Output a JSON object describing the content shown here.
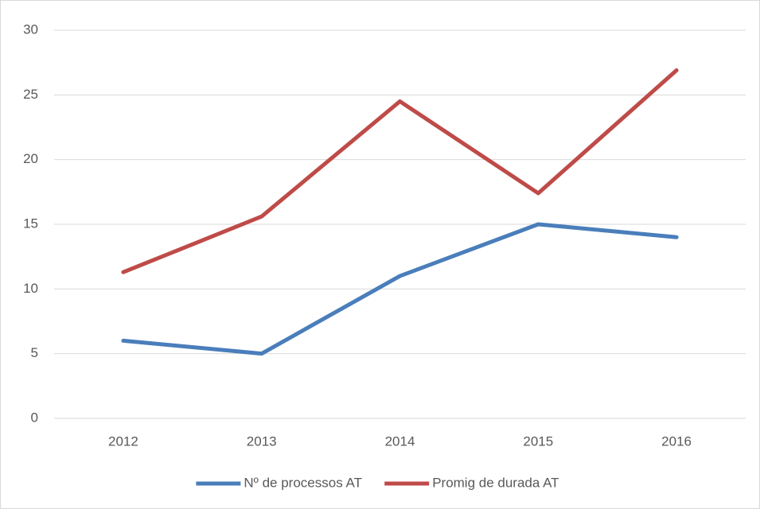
{
  "chart_data": {
    "type": "line",
    "categories": [
      "2012",
      "2013",
      "2014",
      "2015",
      "2016"
    ],
    "series": [
      {
        "name": "Nº de processos AT",
        "color": "#4a7ebb",
        "values": [
          6,
          5,
          11,
          15,
          14
        ]
      },
      {
        "name": "Promig de durada AT",
        "color": "#be4b48",
        "values": [
          11.3,
          15.6,
          24.5,
          17.4,
          26.9
        ]
      }
    ],
    "ylim": [
      0,
      30
    ],
    "yticks": [
      0,
      5,
      10,
      15,
      20,
      25,
      30
    ],
    "grid": true,
    "legend": "bottom"
  }
}
